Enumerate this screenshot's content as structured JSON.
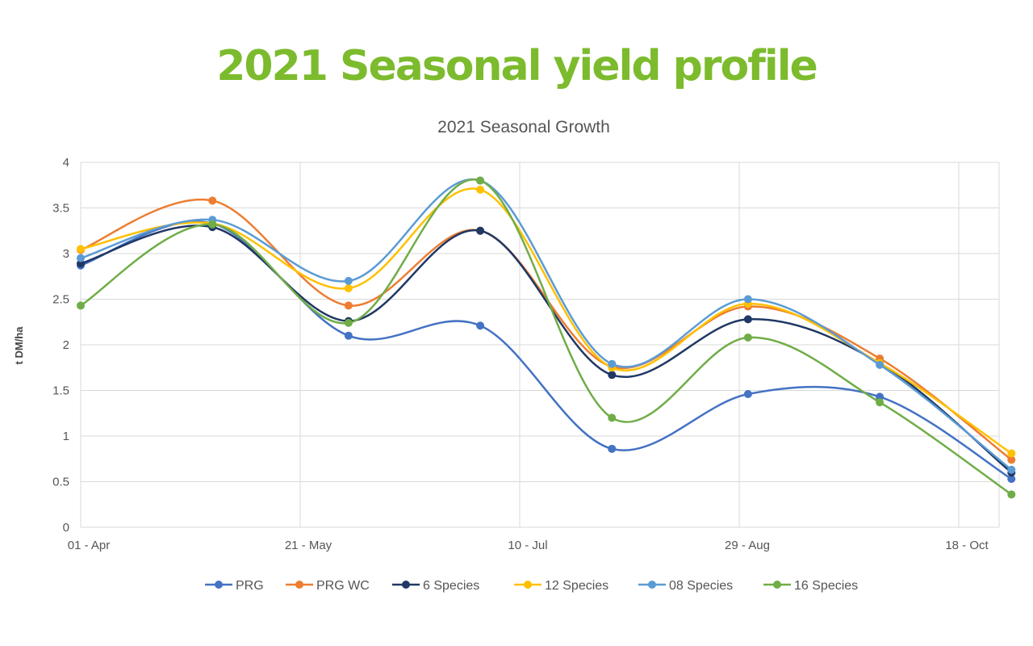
{
  "page_title": "2021 Seasonal yield profile",
  "chart_data": {
    "type": "line",
    "title": "2021 Seasonal Growth",
    "xlabel": "",
    "ylabel": "t DM/ha",
    "ylim": [
      0,
      4
    ],
    "y_ticks": [
      "0",
      "0.5",
      "1",
      "1.5",
      "2",
      "2.5",
      "3",
      "3.5",
      "4"
    ],
    "x_tick_labels": [
      "01 - Apr",
      "21 - May",
      "10 - Jul",
      "29 - Aug",
      "18 - Oct"
    ],
    "x_tick_dates": [
      "2021-04-01",
      "2021-05-21",
      "2021-07-10",
      "2021-08-29",
      "2021-10-18"
    ],
    "x_range": [
      "2021-04-01",
      "2021-10-31"
    ],
    "smooth": true,
    "grid": true,
    "legend_position": "bottom",
    "series": [
      {
        "name": "PRG",
        "color": "#4472c4",
        "x": [
          "2021-04-01",
          "2021-05-01",
          "2021-06-01",
          "2021-07-01",
          "2021-07-31",
          "2021-08-31",
          "2021-09-30",
          "2021-10-30"
        ],
        "y": [
          2.87,
          3.33,
          2.1,
          2.21,
          0.86,
          1.46,
          1.43,
          0.53
        ]
      },
      {
        "name": "PRG WC",
        "color": "#ed7d31",
        "x": [
          "2021-04-01",
          "2021-05-01",
          "2021-06-01",
          "2021-07-01",
          "2021-07-31",
          "2021-08-31",
          "2021-09-30",
          "2021-10-30"
        ],
        "y": [
          3.04,
          3.58,
          2.43,
          3.25,
          1.76,
          2.42,
          1.85,
          0.74
        ]
      },
      {
        "name": "6 Species",
        "color": "#203864",
        "x": [
          "2021-04-01",
          "2021-05-01",
          "2021-06-01",
          "2021-07-01",
          "2021-07-31",
          "2021-08-31",
          "2021-09-30",
          "2021-10-30"
        ],
        "y": [
          2.89,
          3.29,
          2.26,
          3.25,
          1.67,
          2.28,
          1.8,
          0.6
        ]
      },
      {
        "name": "12 Species",
        "color": "#ffc000",
        "x": [
          "2021-04-01",
          "2021-05-01",
          "2021-06-01",
          "2021-07-01",
          "2021-07-31",
          "2021-08-31",
          "2021-09-30",
          "2021-10-30"
        ],
        "y": [
          3.05,
          3.33,
          2.62,
          3.7,
          1.75,
          2.45,
          1.8,
          0.81
        ]
      },
      {
        "name": "08 Species",
        "color": "#5b9bd5",
        "x": [
          "2021-04-01",
          "2021-05-01",
          "2021-06-01",
          "2021-07-01",
          "2021-07-31",
          "2021-08-31",
          "2021-09-30",
          "2021-10-30"
        ],
        "y": [
          2.95,
          3.37,
          2.7,
          3.8,
          1.79,
          2.5,
          1.78,
          0.63
        ]
      },
      {
        "name": "16 Species",
        "color": "#70ad47",
        "x": [
          "2021-04-01",
          "2021-05-01",
          "2021-06-01",
          "2021-07-01",
          "2021-07-31",
          "2021-08-31",
          "2021-09-30",
          "2021-10-30"
        ],
        "y": [
          2.43,
          3.32,
          2.24,
          3.8,
          1.2,
          2.08,
          1.37,
          0.36
        ]
      }
    ]
  }
}
